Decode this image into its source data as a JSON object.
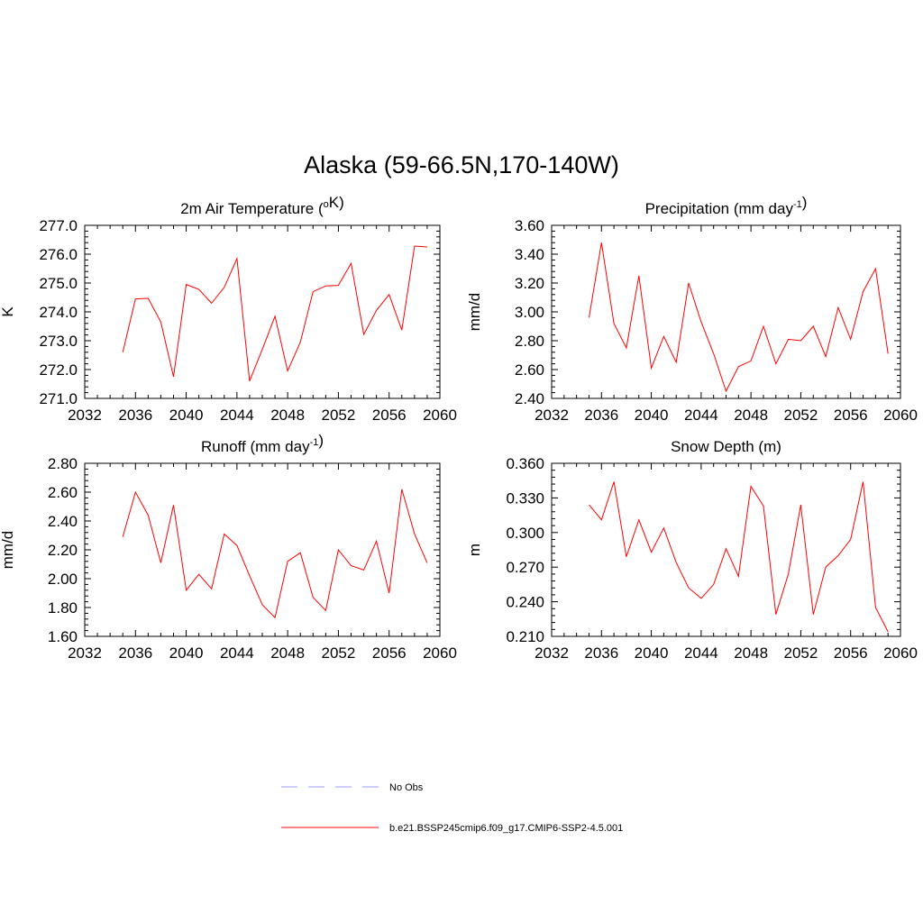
{
  "title": "Alaska (59-66.5N,170-140W)",
  "colors": {
    "model": "#ff0000",
    "obs": "#9999ff",
    "axis": "#000000"
  },
  "legend": {
    "obs_label": "No Obs",
    "model_label": "b.e21.BSSP245cmip6.f09_g17.CMIP6-SSP2-4.5.001"
  },
  "chart_data": [
    {
      "type": "line",
      "title": "2m Air Temperature (",
      "title_sup_pre": "o",
      "title_mid": "K)",
      "title_sup_post": "",
      "title_end": "",
      "ylabel": "K",
      "xlim": [
        2032,
        2060
      ],
      "ylim": [
        271.0,
        277.0
      ],
      "xticks": [
        "2032",
        "2036",
        "2040",
        "2044",
        "2048",
        "2052",
        "2056",
        "2060"
      ],
      "yticks": [
        "271.0",
        "272.0",
        "273.0",
        "274.0",
        "275.0",
        "276.0",
        "277.0"
      ],
      "x": [
        2035,
        2036,
        2037,
        2038,
        2039,
        2040,
        2041,
        2042,
        2043,
        2044,
        2045,
        2046,
        2047,
        2048,
        2049,
        2050,
        2051,
        2052,
        2053,
        2054,
        2055,
        2056,
        2057,
        2058,
        2059
      ],
      "series": [
        {
          "values": [
            272.6,
            274.45,
            274.47,
            273.65,
            271.75,
            274.95,
            274.78,
            274.3,
            274.85,
            275.85,
            271.6,
            272.7,
            273.85,
            271.95,
            272.95,
            274.7,
            274.9,
            274.92,
            275.68,
            273.22,
            274.05,
            274.6,
            273.37,
            276.28,
            276.25
          ]
        }
      ]
    },
    {
      "type": "line",
      "title": "Precipitation (mm day",
      "title_sup_pre": "",
      "title_mid": "",
      "title_sup_post": "-1",
      "title_end": ")",
      "ylabel": "mm/d",
      "xlim": [
        2032,
        2060
      ],
      "ylim": [
        2.4,
        3.6
      ],
      "xticks": [
        "2032",
        "2036",
        "2040",
        "2044",
        "2048",
        "2052",
        "2056",
        "2060"
      ],
      "yticks": [
        "2.40",
        "2.60",
        "2.80",
        "3.00",
        "3.20",
        "3.40",
        "3.60"
      ],
      "x": [
        2035,
        2036,
        2037,
        2038,
        2039,
        2040,
        2041,
        2042,
        2043,
        2044,
        2045,
        2046,
        2047,
        2048,
        2049,
        2050,
        2051,
        2052,
        2053,
        2054,
        2055,
        2056,
        2057,
        2058,
        2059
      ],
      "series": [
        {
          "values": [
            2.96,
            3.48,
            2.92,
            2.75,
            3.25,
            2.61,
            2.83,
            2.65,
            3.2,
            2.93,
            2.71,
            2.45,
            2.62,
            2.66,
            2.9,
            2.64,
            2.81,
            2.8,
            2.9,
            2.69,
            3.03,
            2.81,
            3.14,
            3.3,
            2.71
          ]
        }
      ]
    },
    {
      "type": "line",
      "title": "Runoff (mm day",
      "title_sup_pre": "",
      "title_mid": "",
      "title_sup_post": "-1",
      "title_end": ")",
      "ylabel": "mm/d",
      "xlim": [
        2032,
        2060
      ],
      "ylim": [
        1.6,
        2.8
      ],
      "xticks": [
        "2032",
        "2036",
        "2040",
        "2044",
        "2048",
        "2052",
        "2056",
        "2060"
      ],
      "yticks": [
        "1.60",
        "1.80",
        "2.00",
        "2.20",
        "2.40",
        "2.60",
        "2.80"
      ],
      "x": [
        2035,
        2036,
        2037,
        2038,
        2039,
        2040,
        2041,
        2042,
        2043,
        2044,
        2045,
        2046,
        2047,
        2048,
        2049,
        2050,
        2051,
        2052,
        2053,
        2054,
        2055,
        2056,
        2057,
        2058,
        2059
      ],
      "series": [
        {
          "values": [
            2.29,
            2.6,
            2.44,
            2.11,
            2.51,
            1.92,
            2.03,
            1.93,
            2.31,
            2.23,
            2.02,
            1.82,
            1.73,
            2.12,
            2.18,
            1.87,
            1.78,
            2.2,
            2.09,
            2.06,
            2.26,
            1.9,
            2.62,
            2.31,
            2.11
          ]
        }
      ]
    },
    {
      "type": "line",
      "title": "Snow Depth (m)",
      "title_sup_pre": "",
      "title_mid": "",
      "title_sup_post": "",
      "title_end": "",
      "ylabel": "m",
      "xlim": [
        2032,
        2060
      ],
      "ylim": [
        0.21,
        0.36
      ],
      "xticks": [
        "2032",
        "2036",
        "2040",
        "2044",
        "2048",
        "2052",
        "2056",
        "2060"
      ],
      "yticks": [
        "0.210",
        "0.240",
        "0.270",
        "0.300",
        "0.330",
        "0.360"
      ],
      "x": [
        2035,
        2036,
        2037,
        2038,
        2039,
        2040,
        2041,
        2042,
        2043,
        2044,
        2045,
        2046,
        2047,
        2048,
        2049,
        2050,
        2051,
        2052,
        2053,
        2054,
        2055,
        2056,
        2057,
        2058,
        2059
      ],
      "series": [
        {
          "values": [
            0.324,
            0.311,
            0.344,
            0.279,
            0.311,
            0.283,
            0.304,
            0.274,
            0.252,
            0.243,
            0.255,
            0.286,
            0.262,
            0.34,
            0.323,
            0.229,
            0.264,
            0.324,
            0.229,
            0.27,
            0.28,
            0.294,
            0.344,
            0.235,
            0.214
          ]
        }
      ]
    }
  ]
}
